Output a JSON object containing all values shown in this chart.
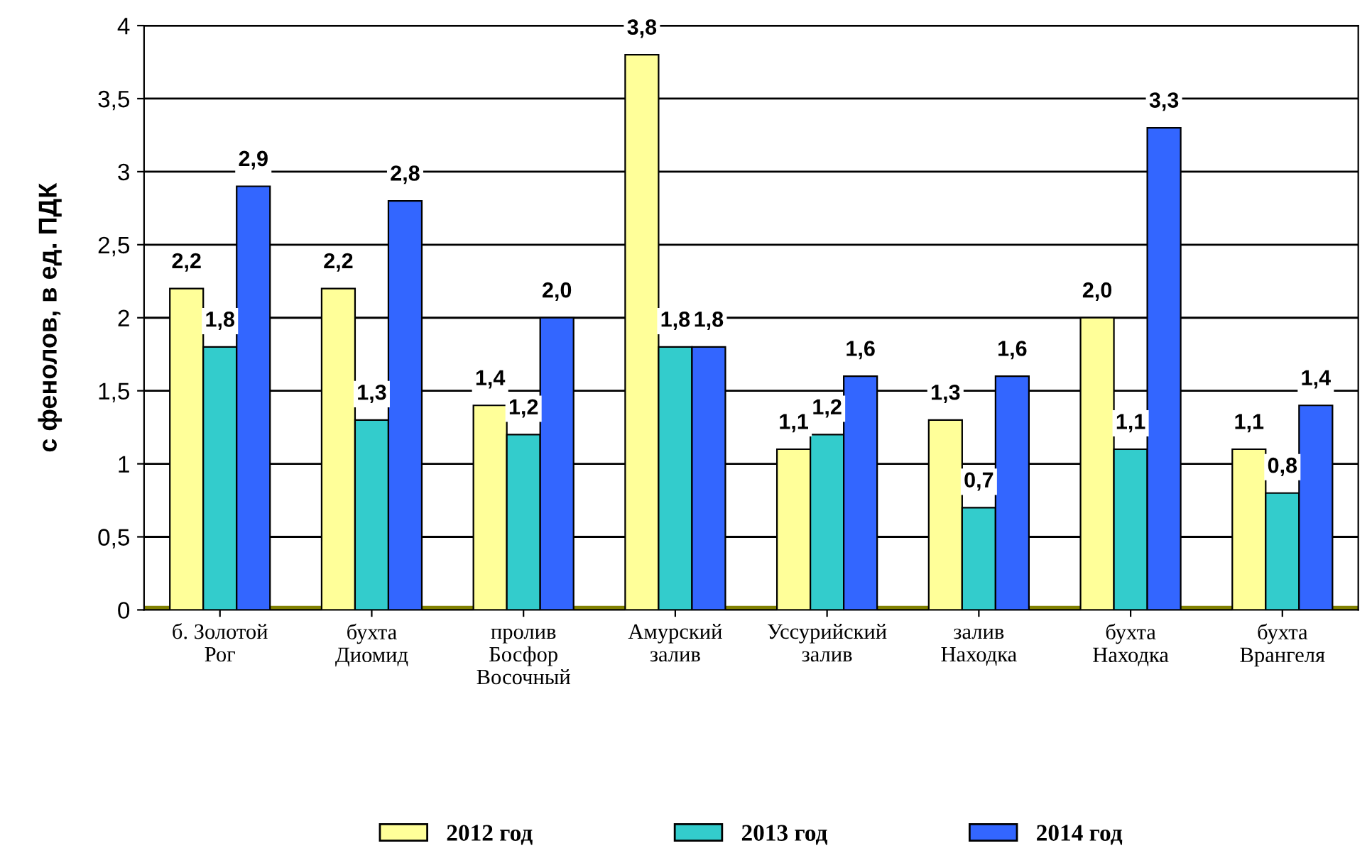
{
  "chart_data": {
    "type": "bar",
    "ylabel": "с фенолов, в ед. ПДК",
    "categories": [
      "б. Золотой\nРог",
      "бухта\nДиомид",
      "пролив\nБосфор\nВосочный",
      "Амурский\nзалив",
      "Уссурийский\nзалив",
      "залив\nНаходка",
      "бухта\nНаходка",
      "бухта\nВрангеля"
    ],
    "series": [
      {
        "name": "2012 год",
        "color": "#ffff99",
        "values": [
          2.2,
          2.2,
          1.4,
          3.8,
          1.1,
          1.3,
          2.0,
          1.1
        ],
        "value_labels": [
          "2,2",
          "2,2",
          "1,4",
          "3,8",
          "1,1",
          "1,3",
          "2,0",
          "1,1"
        ]
      },
      {
        "name": "2013 год",
        "color": "#33cccc",
        "values": [
          1.8,
          1.3,
          1.2,
          1.8,
          1.2,
          0.7,
          1.1,
          0.8
        ],
        "value_labels": [
          "1,8",
          "1,3",
          "1,2",
          "1,8",
          "1,2",
          "0,7",
          "1,1",
          "0,8"
        ]
      },
      {
        "name": "2014 год",
        "color": "#3366ff",
        "values": [
          2.9,
          2.8,
          2.0,
          1.8,
          1.6,
          1.6,
          3.3,
          1.4
        ],
        "value_labels": [
          "2,9",
          "2,8",
          "2,0",
          "1,8",
          "1,6",
          "1,6",
          "3,3",
          "1,4"
        ]
      }
    ],
    "ylim": [
      0,
      4
    ],
    "yticks": [
      0,
      {
        "value": 0.5,
        "label": "0,5"
      },
      1,
      {
        "value": 1.5,
        "label": "1,5"
      },
      2,
      {
        "value": 2.5,
        "label": "2,5"
      },
      3,
      {
        "value": 3.5,
        "label": "3,5"
      },
      4
    ],
    "grid": "y",
    "legend": "bottom"
  }
}
